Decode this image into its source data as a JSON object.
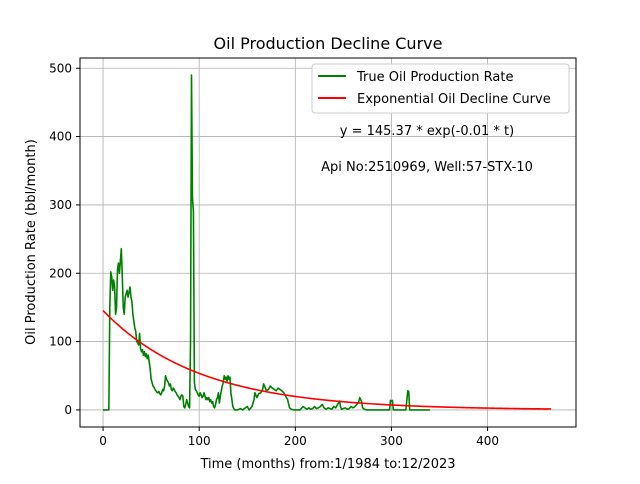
{
  "chart_data": {
    "type": "line",
    "title": "Oil Production Decline Curve",
    "xlabel": "Time (months) from:1/1984 to:12/2023",
    "ylabel": "Oil Production Rate (bbl/month)",
    "xlim": [
      -24,
      492
    ],
    "ylim": [
      -25,
      515
    ],
    "xticks": [
      0,
      100,
      200,
      300,
      400
    ],
    "yticks": [
      0,
      100,
      200,
      300,
      400,
      500
    ],
    "grid": true,
    "legend_position": "top-right",
    "annotations": [
      "y = 145.37 * exp(-0.01 * t)",
      "Api No:2510969, Well:57-STX-10"
    ],
    "series": [
      {
        "name": "True Oil Production Rate",
        "color": "#008000",
        "points": [
          [
            0,
            0
          ],
          [
            5,
            0
          ],
          [
            6,
            0
          ],
          [
            7,
            150
          ],
          [
            8,
            202
          ],
          [
            9,
            195
          ],
          [
            10,
            175
          ],
          [
            11,
            190
          ],
          [
            12,
            180
          ],
          [
            13,
            140
          ],
          [
            14,
            150
          ],
          [
            15,
            205
          ],
          [
            16,
            215
          ],
          [
            17,
            200
          ],
          [
            18,
            218
          ],
          [
            19,
            236
          ],
          [
            20,
            195
          ],
          [
            21,
            150
          ],
          [
            22,
            140
          ],
          [
            23,
            165
          ],
          [
            24,
            170
          ],
          [
            25,
            175
          ],
          [
            26,
            165
          ],
          [
            27,
            172
          ],
          [
            28,
            180
          ],
          [
            29,
            165
          ],
          [
            30,
            158
          ],
          [
            31,
            140
          ],
          [
            32,
            130
          ],
          [
            33,
            120
          ],
          [
            34,
            115
          ],
          [
            35,
            100
          ],
          [
            36,
            98
          ],
          [
            37,
            95
          ],
          [
            38,
            112
          ],
          [
            39,
            90
          ],
          [
            40,
            85
          ],
          [
            41,
            88
          ],
          [
            42,
            80
          ],
          [
            43,
            85
          ],
          [
            44,
            78
          ],
          [
            45,
            82
          ],
          [
            46,
            75
          ],
          [
            47,
            80
          ],
          [
            48,
            70
          ],
          [
            49,
            60
          ],
          [
            50,
            45
          ],
          [
            51,
            40
          ],
          [
            52,
            35
          ],
          [
            53,
            33
          ],
          [
            54,
            30
          ],
          [
            55,
            28
          ],
          [
            56,
            26
          ],
          [
            57,
            25
          ],
          [
            58,
            27
          ],
          [
            59,
            24
          ],
          [
            60,
            22
          ],
          [
            61,
            25
          ],
          [
            62,
            30
          ],
          [
            63,
            28
          ],
          [
            64,
            35
          ],
          [
            65,
            50
          ],
          [
            66,
            45
          ],
          [
            67,
            42
          ],
          [
            68,
            40
          ],
          [
            69,
            35
          ],
          [
            70,
            38
          ],
          [
            71,
            30
          ],
          [
            72,
            28
          ],
          [
            73,
            32
          ],
          [
            74,
            30
          ],
          [
            75,
            27
          ],
          [
            76,
            25
          ],
          [
            77,
            22
          ],
          [
            78,
            20
          ],
          [
            79,
            18
          ],
          [
            80,
            15
          ],
          [
            81,
            20
          ],
          [
            82,
            22
          ],
          [
            83,
            20
          ],
          [
            84,
            5
          ],
          [
            85,
            3
          ],
          [
            86,
            8
          ],
          [
            87,
            15
          ],
          [
            88,
            10
          ],
          [
            89,
            5
          ],
          [
            90,
            3
          ],
          [
            91,
            100
          ],
          [
            92,
            490
          ],
          [
            93,
            310
          ],
          [
            94,
            290
          ],
          [
            95,
            40
          ],
          [
            96,
            30
          ],
          [
            97,
            28
          ],
          [
            98,
            25
          ],
          [
            99,
            22
          ],
          [
            100,
            20
          ],
          [
            101,
            25
          ],
          [
            102,
            22
          ],
          [
            103,
            18
          ],
          [
            104,
            20
          ],
          [
            105,
            25
          ],
          [
            106,
            20
          ],
          [
            107,
            15
          ],
          [
            108,
            18
          ],
          [
            109,
            15
          ],
          [
            110,
            18
          ],
          [
            111,
            12
          ],
          [
            112,
            15
          ],
          [
            113,
            10
          ],
          [
            114,
            12
          ],
          [
            115,
            5
          ],
          [
            116,
            3
          ],
          [
            117,
            8
          ],
          [
            118,
            15
          ],
          [
            119,
            18
          ],
          [
            120,
            25
          ],
          [
            121,
            10
          ],
          [
            122,
            20
          ],
          [
            123,
            28
          ],
          [
            124,
            35
          ],
          [
            125,
            40
          ],
          [
            126,
            50
          ],
          [
            127,
            45
          ],
          [
            128,
            48
          ],
          [
            129,
            42
          ],
          [
            130,
            50
          ],
          [
            131,
            45
          ],
          [
            132,
            48
          ],
          [
            133,
            25
          ],
          [
            134,
            15
          ],
          [
            135,
            5
          ],
          [
            136,
            2
          ],
          [
            137,
            0
          ],
          [
            140,
            0
          ],
          [
            143,
            2
          ],
          [
            145,
            0
          ],
          [
            148,
            3
          ],
          [
            150,
            5
          ],
          [
            152,
            0
          ],
          [
            155,
            5
          ],
          [
            157,
            15
          ],
          [
            158,
            25
          ],
          [
            160,
            18
          ],
          [
            162,
            24
          ],
          [
            164,
            25
          ],
          [
            166,
            30
          ],
          [
            167,
            38
          ],
          [
            168,
            35
          ],
          [
            170,
            28
          ],
          [
            172,
            30
          ],
          [
            174,
            35
          ],
          [
            176,
            32
          ],
          [
            178,
            30
          ],
          [
            180,
            28
          ],
          [
            182,
            32
          ],
          [
            184,
            30
          ],
          [
            186,
            28
          ],
          [
            188,
            25
          ],
          [
            190,
            20
          ],
          [
            192,
            15
          ],
          [
            194,
            3
          ],
          [
            196,
            1
          ],
          [
            198,
            0
          ],
          [
            200,
            0
          ],
          [
            205,
            0
          ],
          [
            208,
            5
          ],
          [
            210,
            3
          ],
          [
            212,
            1
          ],
          [
            214,
            3
          ],
          [
            216,
            1
          ],
          [
            218,
            2
          ],
          [
            220,
            5
          ],
          [
            222,
            2
          ],
          [
            224,
            3
          ],
          [
            226,
            5
          ],
          [
            228,
            8
          ],
          [
            230,
            3
          ],
          [
            232,
            1
          ],
          [
            234,
            3
          ],
          [
            236,
            2
          ],
          [
            238,
            1
          ],
          [
            240,
            5
          ],
          [
            242,
            3
          ],
          [
            244,
            8
          ],
          [
            246,
            13
          ],
          [
            247,
            5
          ],
          [
            248,
            1
          ],
          [
            250,
            2
          ],
          [
            252,
            3
          ],
          [
            254,
            1
          ],
          [
            256,
            2
          ],
          [
            258,
            5
          ],
          [
            260,
            3
          ],
          [
            262,
            5
          ],
          [
            264,
            8
          ],
          [
            266,
            12
          ],
          [
            267,
            18
          ],
          [
            268,
            15
          ],
          [
            269,
            12
          ],
          [
            270,
            3
          ],
          [
            272,
            1
          ],
          [
            274,
            0
          ],
          [
            280,
            0
          ],
          [
            288,
            0
          ],
          [
            295,
            0
          ],
          [
            298,
            0
          ],
          [
            299,
            14
          ],
          [
            300,
            13
          ],
          [
            301,
            14
          ],
          [
            302,
            0
          ],
          [
            310,
            0
          ],
          [
            315,
            0
          ],
          [
            316,
            14
          ],
          [
            317,
            28
          ],
          [
            318,
            27
          ],
          [
            319,
            0
          ],
          [
            330,
            0
          ],
          [
            340,
            0
          ]
        ]
      },
      {
        "name": "Exponential Oil Decline Curve",
        "color": "#ff0000",
        "model": {
          "a": 145.37,
          "b": 0.01,
          "t_min": 0,
          "t_max": 467,
          "step": 2
        }
      }
    ]
  }
}
